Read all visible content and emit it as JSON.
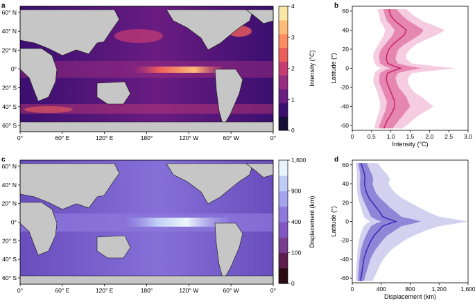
{
  "panels": {
    "a": {
      "letter": "a",
      "colorbar_label": "Intensity (°C)",
      "colorbar_ticks": [
        "0",
        "1",
        "2",
        "3",
        "4"
      ],
      "colorbar_colors": [
        "#150e37",
        "#3b0f70",
        "#6a1c81",
        "#972c80",
        "#c83c74",
        "#ec5d5c",
        "#fb8d60",
        "#fdbd78",
        "#fbe7a6"
      ]
    },
    "b": {
      "letter": "b",
      "xlabel": "Intensity (°C)",
      "ylabel": "Latitude (°)"
    },
    "c": {
      "letter": "c",
      "colorbar_label": "Displacement (km)",
      "colorbar_ticks": [
        "0",
        "100",
        "400",
        "900",
        "1,600"
      ],
      "colorbar_colors": [
        "#2b0b12",
        "#5e1d4d",
        "#7a3c8f",
        "#8256c4",
        "#8f79dd",
        "#a4a3ee",
        "#bfcdf6",
        "#e8f4fb"
      ]
    },
    "d": {
      "letter": "d",
      "xlabel": "Displacement (km)",
      "ylabel": "Latitude (°)"
    }
  },
  "map_axes": {
    "lon_ticks": [
      "0°",
      "60° E",
      "120° E",
      "180°",
      "120° W",
      "60° W",
      "0°"
    ],
    "lat_ticks": [
      "60° N",
      "40° N",
      "20° N",
      "0°",
      "20° S",
      "40° S",
      "60° S"
    ]
  },
  "chart_data": [
    {
      "type": "line",
      "panel": "b",
      "xlabel": "Intensity (°C)",
      "ylabel": "Latitude (°)",
      "xlim": [
        0,
        3.0
      ],
      "ylim": [
        -65,
        65
      ],
      "xticks": [
        "0",
        "0.5",
        "1.0",
        "1.5",
        "2.0",
        "2.5",
        "3.0"
      ],
      "yticks": [
        "60",
        "40",
        "20",
        "0",
        "-20",
        "-40",
        "-60"
      ],
      "colors": {
        "line": "#c8286e",
        "inner_band": "#e687b2",
        "outer_band": "#f6cde0"
      },
      "latitude": [
        62,
        55,
        50,
        45,
        40,
        35,
        30,
        25,
        20,
        15,
        10,
        5,
        2,
        0,
        -2,
        -5,
        -10,
        -15,
        -20,
        -25,
        -30,
        -35,
        -40,
        -45,
        -50,
        -55,
        -60,
        -63
      ],
      "median": [
        0.95,
        1.0,
        1.1,
        1.25,
        1.4,
        1.35,
        1.2,
        1.05,
        0.95,
        0.9,
        0.88,
        0.92,
        1.1,
        1.25,
        1.1,
        0.92,
        0.88,
        0.9,
        0.95,
        1.0,
        1.05,
        1.1,
        1.1,
        1.05,
        0.98,
        0.9,
        0.85,
        0.82
      ],
      "inner_low": [
        0.8,
        0.85,
        0.9,
        1.0,
        1.1,
        1.05,
        0.95,
        0.85,
        0.75,
        0.7,
        0.7,
        0.72,
        0.85,
        1.0,
        0.85,
        0.72,
        0.7,
        0.7,
        0.75,
        0.8,
        0.85,
        0.9,
        0.88,
        0.85,
        0.8,
        0.75,
        0.7,
        0.7
      ],
      "inner_high": [
        1.15,
        1.3,
        1.45,
        1.65,
        1.85,
        1.75,
        1.55,
        1.35,
        1.2,
        1.15,
        1.12,
        1.18,
        1.5,
        1.8,
        1.5,
        1.18,
        1.12,
        1.15,
        1.2,
        1.3,
        1.4,
        1.45,
        1.5,
        1.4,
        1.3,
        1.2,
        1.1,
        1.05
      ],
      "outer_low": [
        0.65,
        0.7,
        0.72,
        0.8,
        0.85,
        0.82,
        0.75,
        0.68,
        0.6,
        0.55,
        0.55,
        0.58,
        0.65,
        0.75,
        0.65,
        0.58,
        0.55,
        0.55,
        0.6,
        0.65,
        0.68,
        0.72,
        0.72,
        0.7,
        0.66,
        0.62,
        0.58,
        0.58
      ],
      "outer_high": [
        1.4,
        1.6,
        1.8,
        2.1,
        2.4,
        2.2,
        1.9,
        1.65,
        1.5,
        1.4,
        1.4,
        1.55,
        2.2,
        2.7,
        2.2,
        1.55,
        1.45,
        1.45,
        1.5,
        1.6,
        1.8,
        1.95,
        2.1,
        1.9,
        1.7,
        1.55,
        1.4,
        1.3
      ]
    },
    {
      "type": "line",
      "panel": "d",
      "xlabel": "Displacement (km)",
      "ylabel": "Latitude (°)",
      "xlim": [
        0,
        1600
      ],
      "ylim": [
        -65,
        65
      ],
      "xticks": [
        "0",
        "400",
        "800",
        "1,200",
        "1,600"
      ],
      "yticks": [
        "60",
        "40",
        "20",
        "0",
        "-20",
        "-40",
        "-60"
      ],
      "colors": {
        "line": "#3b2db8",
        "inner_band": "#8f86d8",
        "outer_band": "#d3d0f0"
      },
      "latitude": [
        62,
        55,
        50,
        45,
        40,
        35,
        30,
        25,
        20,
        15,
        10,
        5,
        2,
        0,
        -2,
        -5,
        -10,
        -15,
        -20,
        -25,
        -30,
        -35,
        -40,
        -45,
        -50,
        -55,
        -60,
        -63
      ],
      "median": [
        120,
        150,
        170,
        175,
        170,
        180,
        200,
        230,
        280,
        330,
        380,
        420,
        520,
        600,
        520,
        420,
        360,
        300,
        260,
        230,
        200,
        180,
        160,
        150,
        140,
        130,
        120,
        115
      ],
      "inner_low": [
        80,
        100,
        110,
        110,
        105,
        110,
        120,
        140,
        170,
        200,
        230,
        260,
        330,
        400,
        330,
        260,
        220,
        190,
        160,
        140,
        120,
        110,
        100,
        95,
        90,
        85,
        80,
        78
      ],
      "inner_high": [
        200,
        240,
        270,
        290,
        280,
        300,
        330,
        380,
        450,
        520,
        600,
        680,
        850,
        950,
        850,
        680,
        580,
        480,
        420,
        370,
        320,
        280,
        250,
        230,
        210,
        190,
        170,
        160
      ],
      "outer_low": [
        50,
        60,
        65,
        65,
        60,
        65,
        70,
        80,
        100,
        120,
        140,
        160,
        200,
        250,
        200,
        160,
        130,
        110,
        95,
        85,
        75,
        70,
        65,
        60,
        55,
        52,
        50,
        48
      ],
      "outer_high": [
        350,
        420,
        480,
        520,
        500,
        540,
        600,
        680,
        800,
        920,
        1050,
        1200,
        1450,
        1600,
        1450,
        1200,
        1000,
        850,
        720,
        630,
        540,
        480,
        430,
        390,
        360,
        330,
        300,
        280
      ]
    }
  ]
}
